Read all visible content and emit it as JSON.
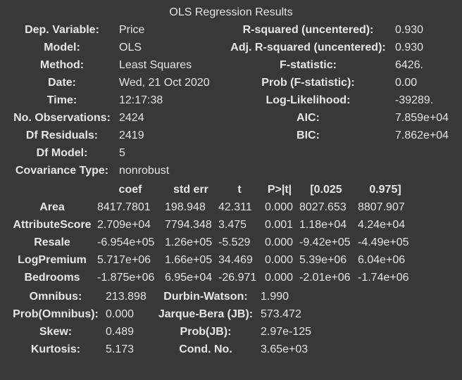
{
  "title": "OLS Regression Results",
  "summary_rows": [
    {
      "l1": "Dep. Variable:",
      "v1": "Price",
      "l2": "R-squared (uncentered):",
      "v2": "0.930"
    },
    {
      "l1": "Model:",
      "v1": "OLS",
      "l2": "Adj. R-squared (uncentered):",
      "v2": "0.930"
    },
    {
      "l1": "Method:",
      "v1": "Least Squares",
      "l2": "F-statistic:",
      "v2": "6426."
    },
    {
      "l1": "Date:",
      "v1": "Wed, 21 Oct 2020",
      "l2": "Prob (F-statistic):",
      "v2": "0.00"
    },
    {
      "l1": "Time:",
      "v1": "12:17:38",
      "l2": "Log-Likelihood:",
      "v2": "-39289."
    },
    {
      "l1": "No. Observations:",
      "v1": "2424",
      "l2": "AIC:",
      "v2": "7.859e+04"
    },
    {
      "l1": "Df Residuals:",
      "v1": "2419",
      "l2": "BIC:",
      "v2": "7.862e+04"
    },
    {
      "l1": "Df Model:",
      "v1": "5",
      "l2": "",
      "v2": ""
    },
    {
      "l1": "Covariance Type:",
      "v1": "nonrobust",
      "l2": "",
      "v2": ""
    }
  ],
  "coef_headers": [
    "coef",
    "std err",
    "t",
    "P>|t|",
    "[0.025",
    "0.975]"
  ],
  "coef_rows": [
    {
      "name": "Area",
      "coef": "8417.7801",
      "stderr": "198.948",
      "t": "42.311",
      "p": "0.000",
      "lo": "8027.653",
      "hi": "8807.907"
    },
    {
      "name": "AttributeScore",
      "coef": "2.709e+04",
      "stderr": "7794.348",
      "t": "3.475",
      "p": "0.001",
      "lo": "1.18e+04",
      "hi": "4.24e+04"
    },
    {
      "name": "Resale",
      "coef": "-6.954e+05",
      "stderr": "1.26e+05",
      "t": "-5.529",
      "p": "0.000",
      "lo": "-9.42e+05",
      "hi": "-4.49e+05"
    },
    {
      "name": "LogPremium",
      "coef": "5.717e+06",
      "stderr": "1.66e+05",
      "t": "34.469",
      "p": "0.000",
      "lo": "5.39e+06",
      "hi": "6.04e+06"
    },
    {
      "name": "Bedrooms",
      "coef": "-1.875e+06",
      "stderr": "6.95e+04",
      "t": "-26.971",
      "p": "0.000",
      "lo": "-2.01e+06",
      "hi": "-1.74e+06"
    }
  ],
  "diag_rows": [
    {
      "l1": "Omnibus:",
      "v1": "213.898",
      "l2": "Durbin-Watson:",
      "v2": "1.990"
    },
    {
      "l1": "Prob(Omnibus):",
      "v1": "0.000",
      "l2": "Jarque-Bera (JB):",
      "v2": "573.472"
    },
    {
      "l1": "Skew:",
      "v1": "0.489",
      "l2": "Prob(JB):",
      "v2": "2.97e-125"
    },
    {
      "l1": "Kurtosis:",
      "v1": "5.173",
      "l2": "Cond. No.",
      "v2": "3.65e+03"
    }
  ]
}
